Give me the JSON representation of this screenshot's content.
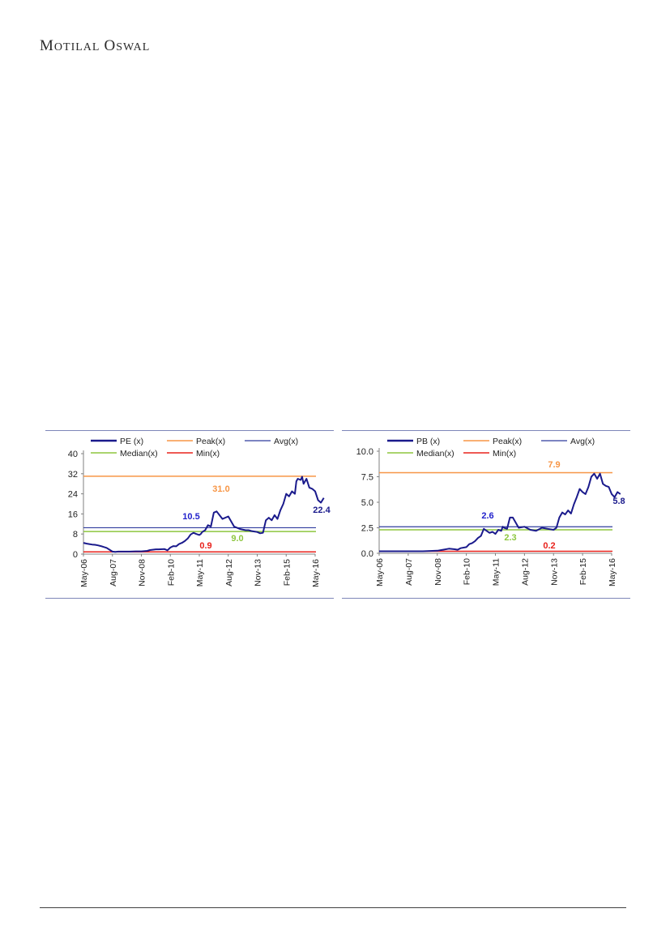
{
  "header": {
    "logo_text": "Motilal Oswal"
  },
  "colors": {
    "series": "#1a1a8c",
    "peak": "#f79646",
    "avg": "#2f3b9e",
    "median": "#8dc63f",
    "min": "#e8221c",
    "frame": "#7d86b8"
  },
  "chart_data": [
    {
      "type": "line",
      "categories": [
        "May-06",
        "Aug-07",
        "Nov-08",
        "Feb-10",
        "May-11",
        "Aug-12",
        "Nov-13",
        "Feb-15",
        "May-16"
      ],
      "yticks": [
        "0",
        "8",
        "16",
        "24",
        "32",
        "40"
      ],
      "ylim": [
        0,
        40
      ],
      "legend": [
        "PE (x)",
        "Peak(x)",
        "Avg(x)",
        "Median(x)",
        "Min(x)"
      ],
      "reference_lines": {
        "peak": 31.0,
        "avg": 10.5,
        "median": 9.0,
        "min": 0.9
      },
      "annotations": {
        "peak": "31.0",
        "avg": "10.5",
        "median": "9.0",
        "min": "0.9",
        "last": "22.4"
      },
      "series": [
        {
          "name": "PE (x)",
          "x": [
            0,
            0.1,
            0.2,
            0.3,
            0.4,
            0.5,
            0.6,
            0.8,
            1.0,
            1.1,
            1.2,
            1.4,
            1.6,
            1.8,
            2.0,
            2.2,
            2.3,
            2.5,
            2.6,
            2.8,
            2.9,
            3.0,
            3.1,
            3.2,
            3.3,
            3.4,
            3.5,
            3.6,
            3.7,
            3.8,
            3.9,
            4.0,
            4.05,
            4.1,
            4.2,
            4.3,
            4.4,
            4.5,
            4.6,
            4.8,
            5.0,
            5.2,
            5.4,
            5.6,
            5.7,
            5.8,
            5.9,
            6.0,
            6.1,
            6.2,
            6.3,
            6.4,
            6.5,
            6.6,
            6.7,
            6.8,
            6.9,
            7.0,
            7.1,
            7.2,
            7.3,
            7.35,
            7.4,
            7.5,
            7.55,
            7.6,
            7.7,
            7.8,
            7.9,
            8.0,
            8.1,
            8.2,
            8.3
          ],
          "values": [
            4.5,
            4.2,
            4.0,
            3.8,
            3.7,
            3.5,
            3.2,
            2.5,
            1.0,
            0.9,
            1.0,
            1.0,
            1.0,
            1.1,
            1.1,
            1.3,
            1.6,
            1.9,
            1.9,
            2.0,
            1.5,
            2.6,
            3.2,
            3.1,
            4.0,
            4.5,
            5.2,
            6.2,
            7.8,
            8.5,
            8.0,
            7.6,
            8.0,
            8.8,
            9.5,
            11.5,
            11.0,
            16.5,
            17.0,
            14.0,
            15.0,
            11.0,
            10.0,
            9.5,
            9.5,
            9.2,
            9.0,
            8.8,
            8.3,
            8.5,
            13.5,
            14.5,
            13.5,
            15.5,
            14.0,
            17.5,
            20.0,
            24.0,
            23.0,
            25.0,
            24.0,
            29.0,
            30.0,
            29.5,
            30.8,
            28.0,
            30.0,
            26.5,
            26.0,
            25.0,
            21.5,
            20.5,
            22.4
          ]
        }
      ]
    },
    {
      "type": "line",
      "categories": [
        "May-06",
        "Aug-07",
        "Nov-08",
        "Feb-10",
        "May-11",
        "Aug-12",
        "Nov-13",
        "Feb-15",
        "May-16"
      ],
      "yticks": [
        "0.0",
        "2.5",
        "5.0",
        "7.5",
        "10.0"
      ],
      "ylim": [
        0,
        10
      ],
      "legend": [
        "PB (x)",
        "Peak(x)",
        "Avg(x)",
        "Median(x)",
        "Min(x)"
      ],
      "reference_lines": {
        "peak": 7.9,
        "avg": 2.6,
        "median": 2.3,
        "min": 0.2
      },
      "annotations": {
        "peak": "7.9",
        "avg": "2.6",
        "median": "2.3",
        "min": "0.2",
        "last": "5.8"
      },
      "series": [
        {
          "name": "PB (x)",
          "x": [
            0,
            0.5,
            1.0,
            1.5,
            2.0,
            2.2,
            2.4,
            2.6,
            2.7,
            2.8,
            3.0,
            3.1,
            3.2,
            3.3,
            3.4,
            3.5,
            3.6,
            3.7,
            3.8,
            3.9,
            4.0,
            4.1,
            4.2,
            4.25,
            4.3,
            4.4,
            4.5,
            4.6,
            4.8,
            5.0,
            5.2,
            5.4,
            5.6,
            5.8,
            6.0,
            6.1,
            6.2,
            6.3,
            6.4,
            6.5,
            6.6,
            6.7,
            6.8,
            6.9,
            7.0,
            7.1,
            7.2,
            7.3,
            7.4,
            7.5,
            7.6,
            7.7,
            7.8,
            7.9,
            8.0,
            8.1,
            8.2,
            8.3
          ],
          "values": [
            0.2,
            0.2,
            0.2,
            0.2,
            0.25,
            0.35,
            0.45,
            0.4,
            0.35,
            0.5,
            0.6,
            0.9,
            1.0,
            1.2,
            1.5,
            1.7,
            2.4,
            2.2,
            2.0,
            2.1,
            1.9,
            2.3,
            2.2,
            2.6,
            2.5,
            2.4,
            3.5,
            3.5,
            2.5,
            2.6,
            2.3,
            2.2,
            2.5,
            2.4,
            2.3,
            2.5,
            3.5,
            4.0,
            3.8,
            4.2,
            3.9,
            4.8,
            5.5,
            6.3,
            6.0,
            5.8,
            6.5,
            7.5,
            7.8,
            7.3,
            7.8,
            6.8,
            6.6,
            6.5,
            5.8,
            5.5,
            6.0,
            5.8
          ]
        }
      ]
    }
  ]
}
